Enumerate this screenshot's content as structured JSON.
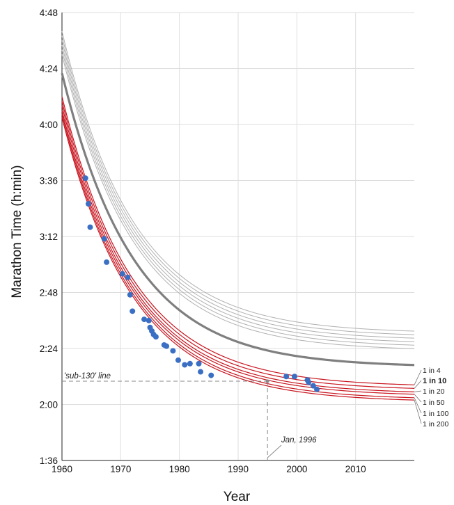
{
  "chart_data": {
    "type": "line",
    "title": "",
    "xlabel": "Year",
    "ylabel": "Marathon Time (h:min)",
    "xlim": [
      1960,
      2020
    ],
    "ylim_minutes": [
      96,
      288
    ],
    "x_ticks": [
      1960,
      1970,
      1980,
      1990,
      2000,
      2010
    ],
    "y_ticks": [
      "1:36",
      "2:00",
      "2:24",
      "2:48",
      "3:12",
      "3:36",
      "4:00",
      "4:24",
      "4:48"
    ],
    "grid": true,
    "curve_model": {
      "form": "exponential_decay",
      "start_year": 1960,
      "decay_rate_per_year": 0.082
    },
    "gray_curves": [
      {
        "start": 280.0,
        "end": 150.5
      },
      {
        "start": 278.0,
        "end": 149.0
      },
      {
        "start": 276.0,
        "end": 147.5
      },
      {
        "start": 274.0,
        "end": 146.0
      },
      {
        "start": 272.0,
        "end": 144.5
      },
      {
        "start": 270.0,
        "end": 143.0
      }
    ],
    "median_curve": {
      "start": 262.0,
      "end": 136.0
    },
    "red_curves": [
      {
        "label": "1 in 4",
        "bold": false,
        "start": 252.0,
        "end": 127.5
      },
      {
        "label": "1 in 10",
        "bold": true,
        "start": 250.0,
        "end": 126.0
      },
      {
        "label": "1 in 20",
        "bold": false,
        "start": 248.0,
        "end": 124.5
      },
      {
        "label": "1 in 50",
        "bold": false,
        "start": 246.0,
        "end": 123.5
      },
      {
        "label": "1 in 100",
        "bold": false,
        "start": 244.5,
        "end": 122.0
      },
      {
        "label": "1 in 200",
        "bold": false,
        "start": 243.0,
        "end": 121.0
      }
    ],
    "record_points": [
      {
        "x": 1964.0,
        "y": 217.0
      },
      {
        "x": 1964.5,
        "y": 206.0
      },
      {
        "x": 1964.8,
        "y": 196.0
      },
      {
        "x": 1967.2,
        "y": 191.0
      },
      {
        "x": 1967.6,
        "y": 181.0
      },
      {
        "x": 1970.3,
        "y": 176.0
      },
      {
        "x": 1971.2,
        "y": 174.5
      },
      {
        "x": 1971.6,
        "y": 167.0
      },
      {
        "x": 1972.0,
        "y": 160.0
      },
      {
        "x": 1974.0,
        "y": 156.5
      },
      {
        "x": 1974.8,
        "y": 156.0
      },
      {
        "x": 1975.0,
        "y": 153.0
      },
      {
        "x": 1975.3,
        "y": 151.5
      },
      {
        "x": 1975.6,
        "y": 150.0
      },
      {
        "x": 1976.0,
        "y": 149.0
      },
      {
        "x": 1977.4,
        "y": 145.5
      },
      {
        "x": 1977.8,
        "y": 145.0
      },
      {
        "x": 1978.9,
        "y": 143.0
      },
      {
        "x": 1979.8,
        "y": 139.0
      },
      {
        "x": 1980.9,
        "y": 137.0
      },
      {
        "x": 1981.8,
        "y": 137.5
      },
      {
        "x": 1983.3,
        "y": 137.5
      },
      {
        "x": 1983.6,
        "y": 134.0
      },
      {
        "x": 1985.4,
        "y": 132.5
      },
      {
        "x": 1998.2,
        "y": 132.0
      },
      {
        "x": 1999.6,
        "y": 132.0
      },
      {
        "x": 2001.8,
        "y": 130.5
      },
      {
        "x": 2002.0,
        "y": 129.5
      },
      {
        "x": 2002.8,
        "y": 128.0
      },
      {
        "x": 2003.4,
        "y": 126.5
      }
    ],
    "sub130_line": {
      "y": 130,
      "label": "'sub-130' line"
    },
    "crossing_marker": {
      "x": 1995,
      "y": 130,
      "label": "Jan, 1996"
    },
    "colors": {
      "gray_curve": "#b0b0b0",
      "median_curve": "#7f7f7f",
      "red_curve": "#c8141e",
      "points": "#3a6fc4",
      "grid": "#dedede",
      "dashed": "#8a8a8a"
    }
  }
}
